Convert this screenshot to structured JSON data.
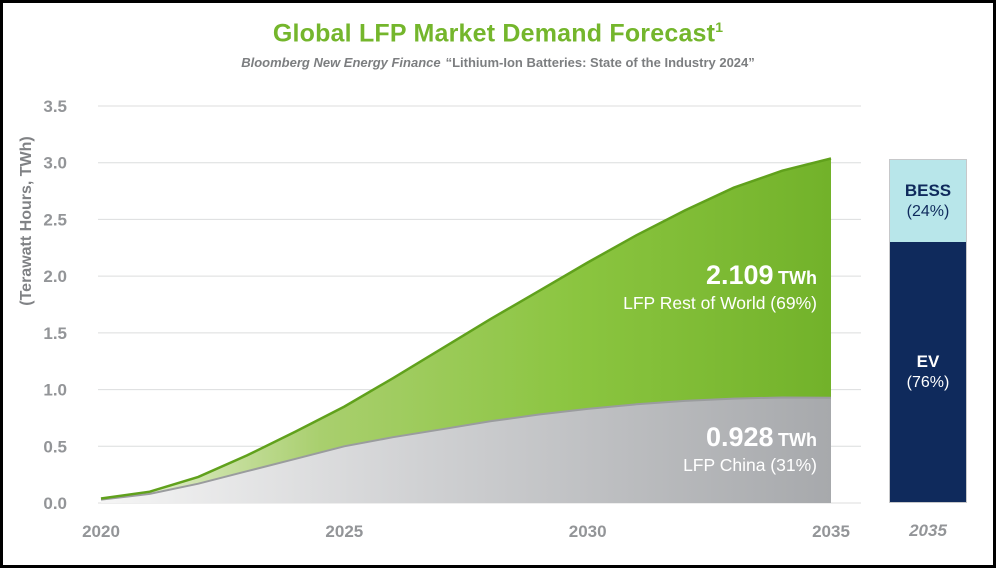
{
  "header": {
    "title": "Global LFP Market Demand Forecast",
    "title_superscript": "1",
    "subtitle_source": "Bloomberg New Energy Finance",
    "subtitle_report": "“Lithium-Ion Batteries: State of the Industry 2024”"
  },
  "colors": {
    "title_green": "#74b62c",
    "axis_gray": "#939598",
    "area_green": "#8bc540",
    "area_gray": "#a7a9ac",
    "bess_cyan": "#b8e6ea",
    "ev_navy": "#0f2a5c"
  },
  "chart_data": {
    "type": "area",
    "stacked": true,
    "title": "Global LFP Market Demand Forecast",
    "subtitle": "Bloomberg New Energy Finance “Lithium-Ion Batteries: State of the Industry 2024”",
    "ylabel": "(Terawatt Hours, TWh)",
    "xlabel": "",
    "ylim": [
      0,
      3.5
    ],
    "grid": true,
    "y_ticks": [
      "0.0",
      "0.5",
      "1.0",
      "1.5",
      "2.0",
      "2.5",
      "3.0",
      "3.5"
    ],
    "x_ticks": [
      2020,
      2025,
      2030,
      2035
    ],
    "x": [
      2020,
      2021,
      2022,
      2023,
      2024,
      2025,
      2026,
      2027,
      2028,
      2029,
      2030,
      2031,
      2032,
      2033,
      2034,
      2035
    ],
    "series": [
      {
        "name": "LFP China",
        "share_pct": 31,
        "final_value_twh": 0.928,
        "values": [
          0.03,
          0.08,
          0.17,
          0.28,
          0.39,
          0.5,
          0.58,
          0.65,
          0.72,
          0.78,
          0.83,
          0.87,
          0.9,
          0.92,
          0.93,
          0.928
        ]
      },
      {
        "name": "LFP Rest of World",
        "share_pct": 69,
        "final_value_twh": 2.109,
        "values": [
          0.01,
          0.02,
          0.06,
          0.14,
          0.24,
          0.35,
          0.52,
          0.71,
          0.9,
          1.09,
          1.29,
          1.49,
          1.68,
          1.86,
          2.0,
          2.109
        ]
      }
    ],
    "annotations": {
      "rest_of_world": {
        "value": "2.109",
        "unit": "TWh",
        "label": "LFP Rest of World (69%)"
      },
      "china": {
        "value": "0.928",
        "unit": "TWh",
        "label": "LFP China (31%)"
      }
    },
    "bar_2035": {
      "x_label": "2035",
      "total_twh": 3.037,
      "segments": [
        {
          "name": "BESS",
          "pct": 24,
          "pct_label": "(24%)",
          "color": "#b8e6ea",
          "text_color": "#0f2a5c"
        },
        {
          "name": "EV",
          "pct": 76,
          "pct_label": "(76%)",
          "color": "#0f2a5c",
          "text_color": "#ffffff"
        }
      ]
    }
  }
}
